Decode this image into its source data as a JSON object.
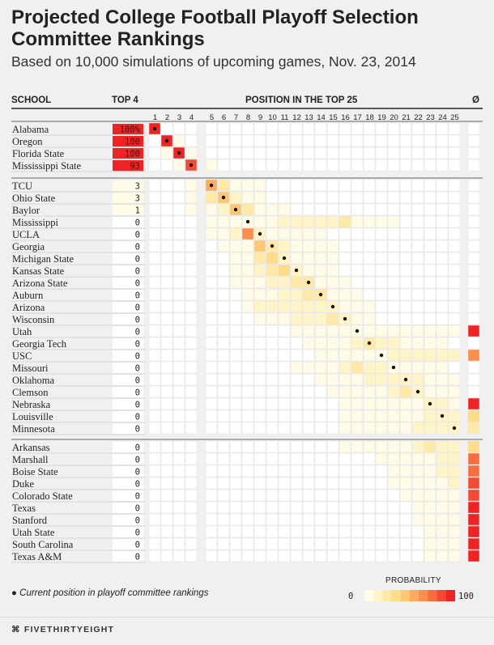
{
  "header": {
    "title": "Projected College Football Playoff Selection Committee Rankings",
    "subtitle": "Based on 10,000 simulations of upcoming games, Nov. 23, 2014",
    "col_school": "SCHOOL",
    "col_top4": "TOP 4",
    "col_position": "POSITION IN THE TOP 25",
    "col_out": "Ø"
  },
  "legend": {
    "note": "Current position in playoff committee rankings",
    "title": "PROBABILITY",
    "low": "0",
    "high": "100"
  },
  "footer": {
    "logo": "FIVETHIRTYEIGHT"
  },
  "colors": {
    "scale": [
      "#fffbe6",
      "#fff4c8",
      "#ffe9a6",
      "#fedc8a",
      "#fdc774",
      "#fbab5e",
      "#f98e4e",
      "#f66e40",
      "#f24a34",
      "#ee2424"
    ],
    "background": "#f0f0f0"
  },
  "chart_data": {
    "type": "heatmap",
    "title": "Projected College Football Playoff Selection Committee Rankings",
    "subtitle": "Based on 10,000 simulations of upcoming games, Nov. 23, 2014",
    "xlabel": "POSITION IN THE TOP 25",
    "columns": [
      "1",
      "2",
      "3",
      "4",
      "5",
      "6",
      "7",
      "8",
      "9",
      "10",
      "11",
      "12",
      "13",
      "14",
      "15",
      "16",
      "17",
      "18",
      "19",
      "20",
      "21",
      "22",
      "23",
      "24",
      "25",
      "Ø"
    ],
    "value_range": [
      0,
      100
    ],
    "groups": [
      4,
      21,
      10
    ],
    "rows": [
      {
        "school": "Alabama",
        "top4": "100%",
        "current": 1,
        "probs": [
          100,
          0,
          0,
          0,
          0,
          0,
          0,
          0,
          0,
          0,
          0,
          0,
          0,
          0,
          0,
          0,
          0,
          0,
          0,
          0,
          0,
          0,
          0,
          0,
          0,
          0
        ]
      },
      {
        "school": "Oregon",
        "top4": "100",
        "current": 2,
        "probs": [
          0,
          95,
          5,
          0,
          0,
          0,
          0,
          0,
          0,
          0,
          0,
          0,
          0,
          0,
          0,
          0,
          0,
          0,
          0,
          0,
          0,
          0,
          0,
          0,
          0,
          0
        ]
      },
      {
        "school": "Florida State",
        "top4": "100",
        "current": 3,
        "probs": [
          0,
          5,
          90,
          5,
          0,
          0,
          0,
          0,
          0,
          0,
          0,
          0,
          0,
          0,
          0,
          0,
          0,
          0,
          0,
          0,
          0,
          0,
          0,
          0,
          0,
          0
        ]
      },
      {
        "school": "Mississippi State",
        "top4": "93",
        "current": 4,
        "probs": [
          0,
          0,
          5,
          88,
          7,
          0,
          0,
          0,
          0,
          0,
          0,
          0,
          0,
          0,
          0,
          0,
          0,
          0,
          0,
          0,
          0,
          0,
          0,
          0,
          0,
          0
        ]
      },
      {
        "school": "TCU",
        "top4": "3",
        "current": 5,
        "probs": [
          0,
          0,
          0,
          3,
          55,
          28,
          8,
          3,
          1,
          0,
          0,
          0,
          0,
          0,
          0,
          0,
          0,
          0,
          0,
          0,
          0,
          0,
          0,
          0,
          0,
          0
        ]
      },
      {
        "school": "Ohio State",
        "top4": "3",
        "current": 6,
        "probs": [
          0,
          0,
          0,
          3,
          28,
          45,
          15,
          5,
          2,
          0,
          0,
          0,
          0,
          0,
          0,
          0,
          0,
          0,
          0,
          0,
          0,
          0,
          0,
          0,
          0,
          0
        ]
      },
      {
        "school": "Baylor",
        "top4": "1",
        "current": 7,
        "probs": [
          0,
          0,
          0,
          1,
          8,
          16,
          40,
          20,
          8,
          4,
          1,
          0,
          0,
          0,
          0,
          0,
          0,
          0,
          0,
          0,
          0,
          0,
          0,
          0,
          0,
          0
        ]
      },
      {
        "school": "Mississippi",
        "top4": "0",
        "current": 8,
        "probs": [
          0,
          0,
          0,
          0,
          2,
          2,
          3,
          4,
          6,
          8,
          10,
          11,
          12,
          13,
          14,
          20,
          9,
          4,
          2,
          1,
          0,
          0,
          0,
          0,
          0,
          0
        ]
      },
      {
        "school": "UCLA",
        "top4": "0",
        "current": 9,
        "probs": [
          0,
          0,
          0,
          0,
          4,
          6,
          10,
          60,
          10,
          5,
          3,
          2,
          1,
          1,
          0,
          0,
          0,
          0,
          0,
          0,
          0,
          0,
          0,
          0,
          0,
          0
        ]
      },
      {
        "school": "Georgia",
        "top4": "0",
        "current": 10,
        "probs": [
          0,
          0,
          0,
          0,
          0,
          1,
          4,
          8,
          42,
          22,
          12,
          6,
          3,
          2,
          1,
          0,
          0,
          0,
          0,
          0,
          0,
          0,
          0,
          0,
          0,
          0
        ]
      },
      {
        "school": "Michigan State",
        "top4": "0",
        "current": 11,
        "probs": [
          0,
          0,
          0,
          0,
          0,
          0,
          2,
          5,
          26,
          36,
          18,
          9,
          4,
          2,
          1,
          0,
          0,
          0,
          0,
          0,
          0,
          0,
          0,
          0,
          0,
          0
        ]
      },
      {
        "school": "Kansas State",
        "top4": "0",
        "current": 12,
        "probs": [
          0,
          0,
          0,
          0,
          0,
          0,
          1,
          4,
          14,
          24,
          30,
          16,
          7,
          3,
          1,
          0,
          0,
          0,
          0,
          0,
          0,
          0,
          0,
          0,
          0,
          0
        ]
      },
      {
        "school": "Arizona State",
        "top4": "0",
        "current": 13,
        "probs": [
          0,
          0,
          0,
          0,
          0,
          0,
          1,
          2,
          7,
          12,
          18,
          26,
          22,
          8,
          3,
          1,
          0,
          0,
          0,
          0,
          0,
          0,
          0,
          0,
          0,
          0
        ]
      },
      {
        "school": "Auburn",
        "top4": "0",
        "current": 14,
        "probs": [
          0,
          0,
          0,
          0,
          0,
          0,
          0,
          1,
          4,
          7,
          12,
          18,
          24,
          20,
          9,
          4,
          1,
          0,
          0,
          0,
          0,
          0,
          0,
          0,
          0,
          0
        ]
      },
      {
        "school": "Arizona",
        "top4": "0",
        "current": 15,
        "probs": [
          0,
          0,
          0,
          0,
          0,
          0,
          0,
          1,
          14,
          11,
          11,
          12,
          14,
          14,
          12,
          6,
          3,
          1,
          0,
          0,
          0,
          0,
          0,
          0,
          0,
          0
        ]
      },
      {
        "school": "Wisconsin",
        "top4": "0",
        "current": 16,
        "probs": [
          0,
          0,
          0,
          0,
          0,
          0,
          0,
          0,
          2,
          5,
          9,
          12,
          14,
          18,
          26,
          10,
          3,
          1,
          0,
          0,
          0,
          0,
          0,
          0,
          0,
          0
        ]
      },
      {
        "school": "Utah",
        "top4": "0",
        "current": 17,
        "probs": [
          0,
          0,
          0,
          0,
          0,
          0,
          0,
          0,
          0,
          0,
          0,
          1,
          1,
          2,
          3,
          3,
          3,
          4,
          4,
          4,
          6,
          8,
          9,
          9,
          8,
          95
        ]
      },
      {
        "school": "Georgia Tech",
        "top4": "0",
        "current": 18,
        "probs": [
          0,
          0,
          0,
          0,
          0,
          0,
          0,
          0,
          0,
          0,
          0,
          0,
          1,
          2,
          4,
          8,
          14,
          26,
          16,
          12,
          8,
          4,
          2,
          1,
          0,
          0
        ]
      },
      {
        "school": "USC",
        "top4": "0",
        "current": 19,
        "probs": [
          0,
          0,
          0,
          0,
          0,
          0,
          0,
          0,
          0,
          0,
          0,
          0,
          0,
          1,
          2,
          4,
          5,
          6,
          8,
          10,
          12,
          14,
          15,
          16,
          14,
          60
        ]
      },
      {
        "school": "Missouri",
        "top4": "0",
        "current": 20,
        "probs": [
          0,
          0,
          0,
          0,
          0,
          0,
          0,
          0,
          0,
          0,
          0,
          1,
          2,
          4,
          6,
          10,
          28,
          14,
          11,
          9,
          6,
          4,
          2,
          1,
          0,
          0
        ]
      },
      {
        "school": "Oklahoma",
        "top4": "0",
        "current": 21,
        "probs": [
          0,
          0,
          0,
          0,
          0,
          0,
          0,
          0,
          0,
          0,
          0,
          0,
          0,
          1,
          2,
          4,
          6,
          10,
          14,
          16,
          14,
          10,
          6,
          4,
          2,
          0
        ]
      },
      {
        "school": "Clemson",
        "top4": "0",
        "current": 22,
        "probs": [
          0,
          0,
          0,
          0,
          0,
          0,
          0,
          0,
          0,
          0,
          0,
          0,
          0,
          0,
          1,
          2,
          4,
          6,
          9,
          12,
          20,
          16,
          9,
          6,
          3,
          0
        ]
      },
      {
        "school": "Nebraska",
        "top4": "0",
        "current": 23,
        "probs": [
          0,
          0,
          0,
          0,
          0,
          0,
          0,
          0,
          0,
          0,
          0,
          0,
          0,
          0,
          0,
          1,
          2,
          3,
          5,
          6,
          9,
          9,
          12,
          10,
          8,
          98
        ]
      },
      {
        "school": "Louisville",
        "top4": "0",
        "current": 24,
        "probs": [
          0,
          0,
          0,
          0,
          0,
          0,
          0,
          0,
          0,
          0,
          0,
          0,
          0,
          0,
          0,
          1,
          1,
          2,
          3,
          5,
          7,
          8,
          10,
          15,
          14,
          30
        ]
      },
      {
        "school": "Minnesota",
        "top4": "0",
        "current": 25,
        "probs": [
          0,
          0,
          0,
          0,
          0,
          0,
          0,
          0,
          0,
          0,
          0,
          0,
          0,
          0,
          0,
          1,
          2,
          3,
          4,
          6,
          8,
          10,
          12,
          14,
          16,
          25
        ]
      },
      {
        "school": "Arkansas",
        "top4": "0",
        "current": null,
        "probs": [
          0,
          0,
          0,
          0,
          0,
          0,
          0,
          0,
          0,
          0,
          0,
          0,
          0,
          0,
          0,
          1,
          2,
          3,
          5,
          7,
          9,
          12,
          24,
          18,
          14,
          35
        ]
      },
      {
        "school": "Marshall",
        "top4": "0",
        "current": null,
        "probs": [
          0,
          0,
          0,
          0,
          0,
          0,
          0,
          0,
          0,
          0,
          0,
          0,
          0,
          0,
          0,
          0,
          0,
          0,
          1,
          2,
          3,
          5,
          8,
          12,
          16,
          70
        ]
      },
      {
        "school": "Boise State",
        "top4": "0",
        "current": null,
        "probs": [
          0,
          0,
          0,
          0,
          0,
          0,
          0,
          0,
          0,
          0,
          0,
          0,
          0,
          0,
          0,
          0,
          0,
          0,
          0,
          1,
          2,
          3,
          6,
          14,
          10,
          78
        ]
      },
      {
        "school": "Duke",
        "top4": "0",
        "current": null,
        "probs": [
          0,
          0,
          0,
          0,
          0,
          0,
          0,
          0,
          0,
          0,
          0,
          0,
          0,
          0,
          0,
          0,
          0,
          0,
          0,
          1,
          1,
          2,
          4,
          8,
          12,
          82
        ]
      },
      {
        "school": "Colorado State",
        "top4": "0",
        "current": null,
        "probs": [
          0,
          0,
          0,
          0,
          0,
          0,
          0,
          0,
          0,
          0,
          0,
          0,
          0,
          0,
          0,
          0,
          0,
          0,
          0,
          0,
          1,
          2,
          3,
          5,
          9,
          88
        ]
      },
      {
        "school": "Texas",
        "top4": "0",
        "current": null,
        "probs": [
          0,
          0,
          0,
          0,
          0,
          0,
          0,
          0,
          0,
          0,
          0,
          0,
          0,
          0,
          0,
          0,
          0,
          0,
          0,
          0,
          0,
          1,
          2,
          4,
          7,
          92
        ]
      },
      {
        "school": "Stanford",
        "top4": "0",
        "current": null,
        "probs": [
          0,
          0,
          0,
          0,
          0,
          0,
          0,
          0,
          0,
          0,
          0,
          0,
          0,
          0,
          0,
          0,
          0,
          0,
          0,
          0,
          0,
          1,
          2,
          3,
          5,
          94
        ]
      },
      {
        "school": "Utah State",
        "top4": "0",
        "current": null,
        "probs": [
          0,
          0,
          0,
          0,
          0,
          0,
          0,
          0,
          0,
          0,
          0,
          0,
          0,
          0,
          0,
          0,
          0,
          0,
          0,
          0,
          0,
          0,
          1,
          2,
          4,
          96
        ]
      },
      {
        "school": "South Carolina",
        "top4": "0",
        "current": null,
        "probs": [
          0,
          0,
          0,
          0,
          0,
          0,
          0,
          0,
          0,
          0,
          0,
          0,
          0,
          0,
          0,
          0,
          0,
          0,
          0,
          0,
          0,
          0,
          1,
          2,
          3,
          96
        ]
      },
      {
        "school": "Texas A&M",
        "top4": "0",
        "current": null,
        "probs": [
          0,
          0,
          0,
          0,
          0,
          0,
          0,
          0,
          0,
          0,
          0,
          0,
          0,
          0,
          0,
          0,
          0,
          0,
          0,
          0,
          0,
          0,
          1,
          1,
          3,
          97
        ]
      }
    ]
  }
}
